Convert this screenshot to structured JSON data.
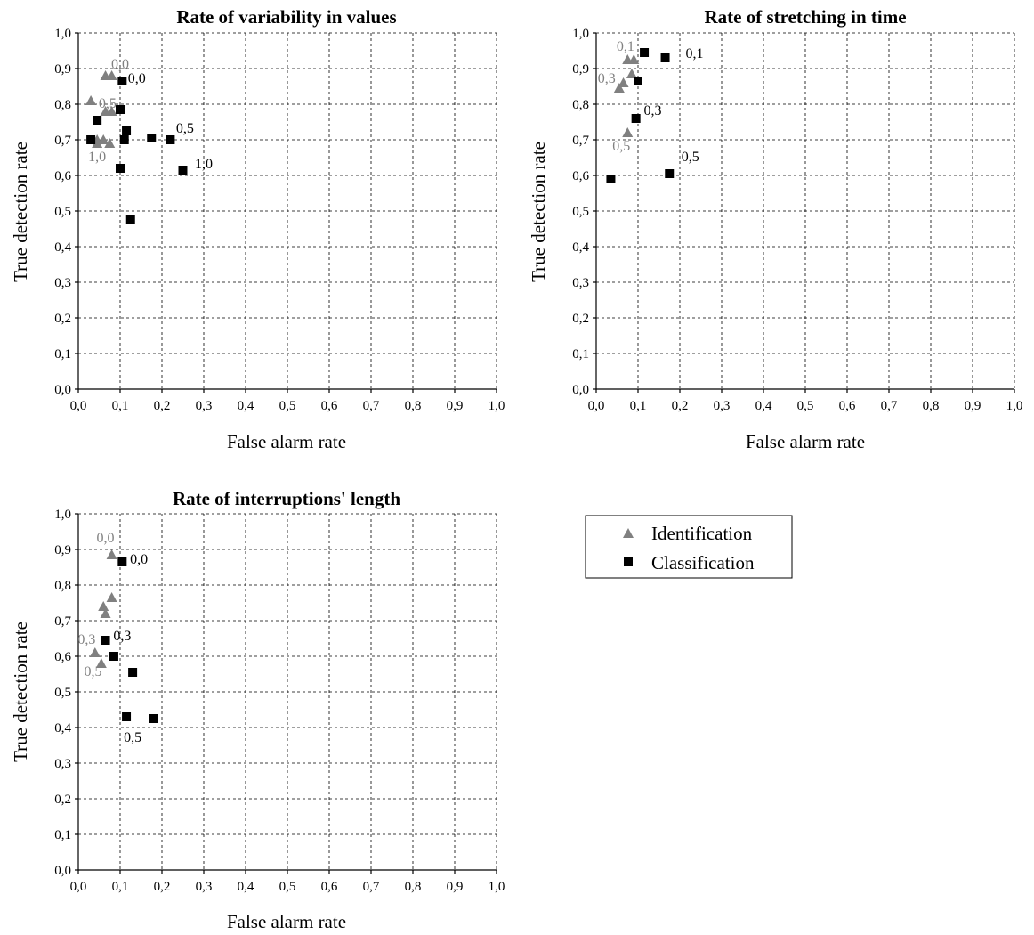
{
  "chart_data": [
    {
      "type": "scatter",
      "title": "Rate of variability in values",
      "xlabel": "False alarm rate",
      "ylabel": "True detection rate",
      "xlim": [
        0,
        1
      ],
      "ylim": [
        0,
        1
      ],
      "xticks": [
        "0,0",
        "0,1",
        "0,2",
        "0,3",
        "0,4",
        "0,5",
        "0,6",
        "0,7",
        "0,8",
        "0,9",
        "1,0"
      ],
      "yticks": [
        "0,0",
        "0,1",
        "0,2",
        "0,3",
        "0,4",
        "0,5",
        "0,6",
        "0,7",
        "0,8",
        "0,9",
        "1,0"
      ],
      "grid": true,
      "series": [
        {
          "name": "Identification",
          "points": [
            [
              0.065,
              0.88
            ],
            [
              0.08,
              0.88
            ],
            [
              0.03,
              0.81
            ],
            [
              0.065,
              0.78
            ],
            [
              0.08,
              0.78
            ],
            [
              0.045,
              0.7
            ],
            [
              0.045,
              0.69
            ],
            [
              0.06,
              0.7
            ],
            [
              0.075,
              0.69
            ]
          ]
        },
        {
          "name": "Classification",
          "points": [
            [
              0.105,
              0.865
            ],
            [
              0.1,
              0.785
            ],
            [
              0.045,
              0.755
            ],
            [
              0.03,
              0.7
            ],
            [
              0.11,
              0.7
            ],
            [
              0.115,
              0.725
            ],
            [
              0.175,
              0.705
            ],
            [
              0.22,
              0.7
            ],
            [
              0.1,
              0.62
            ],
            [
              0.25,
              0.615
            ],
            [
              0.125,
              0.475
            ]
          ]
        }
      ],
      "annotations": [
        {
          "text": "0,0",
          "series": "Identification",
          "x": 0.1,
          "y": 0.9
        },
        {
          "text": "0,5",
          "series": "Identification",
          "x": 0.07,
          "y": 0.79
        },
        {
          "text": "1,0",
          "series": "Identification",
          "x": 0.045,
          "y": 0.64
        },
        {
          "text": "0,0",
          "series": "Classification",
          "x": 0.14,
          "y": 0.86
        },
        {
          "text": "0,5",
          "series": "Classification",
          "x": 0.255,
          "y": 0.72
        },
        {
          "text": "1,0",
          "series": "Classification",
          "x": 0.3,
          "y": 0.62
        }
      ]
    },
    {
      "type": "scatter",
      "title": "Rate of stretching in time",
      "xlabel": "False alarm rate",
      "ylabel": "True detection rate",
      "xlim": [
        0,
        1
      ],
      "ylim": [
        0,
        1
      ],
      "xticks": [
        "0,0",
        "0,1",
        "0,2",
        "0,3",
        "0,4",
        "0,5",
        "0,6",
        "0,7",
        "0,8",
        "0,9",
        "1,0"
      ],
      "yticks": [
        "0,0",
        "0,1",
        "0,2",
        "0,3",
        "0,4",
        "0,5",
        "0,6",
        "0,7",
        "0,8",
        "0,9",
        "1,0"
      ],
      "grid": true,
      "series": [
        {
          "name": "Identification",
          "points": [
            [
              0.075,
              0.925
            ],
            [
              0.09,
              0.925
            ],
            [
              0.055,
              0.845
            ],
            [
              0.065,
              0.86
            ],
            [
              0.085,
              0.885
            ],
            [
              0.075,
              0.72
            ]
          ]
        },
        {
          "name": "Classification",
          "points": [
            [
              0.115,
              0.945
            ],
            [
              0.165,
              0.93
            ],
            [
              0.1,
              0.865
            ],
            [
              0.095,
              0.76
            ],
            [
              0.035,
              0.59
            ],
            [
              0.175,
              0.605
            ]
          ]
        }
      ],
      "annotations": [
        {
          "text": "0,1",
          "series": "Identification",
          "x": 0.07,
          "y": 0.95
        },
        {
          "text": "0,3",
          "series": "Identification",
          "x": 0.025,
          "y": 0.86
        },
        {
          "text": "0,5",
          "series": "Identification",
          "x": 0.06,
          "y": 0.67
        },
        {
          "text": "0,1",
          "series": "Classification",
          "x": 0.235,
          "y": 0.93
        },
        {
          "text": "0,3",
          "series": "Classification",
          "x": 0.135,
          "y": 0.77
        },
        {
          "text": "0,5",
          "series": "Classification",
          "x": 0.225,
          "y": 0.64
        }
      ]
    },
    {
      "type": "scatter",
      "title": "Rate of interruptions' length",
      "xlabel": "False alarm rate",
      "ylabel": "True detection rate",
      "xlim": [
        0,
        1
      ],
      "ylim": [
        0,
        1
      ],
      "xticks": [
        "0,0",
        "0,1",
        "0,2",
        "0,3",
        "0,4",
        "0,5",
        "0,6",
        "0,7",
        "0,8",
        "0,9",
        "1,0"
      ],
      "yticks": [
        "0,0",
        "0,1",
        "0,2",
        "0,3",
        "0,4",
        "0,5",
        "0,6",
        "0,7",
        "0,8",
        "0,9",
        "1,0"
      ],
      "grid": true,
      "series": [
        {
          "name": "Identification",
          "points": [
            [
              0.08,
              0.885
            ],
            [
              0.08,
              0.765
            ],
            [
              0.06,
              0.74
            ],
            [
              0.065,
              0.72
            ],
            [
              0.04,
              0.61
            ],
            [
              0.055,
              0.58
            ]
          ]
        },
        {
          "name": "Classification",
          "points": [
            [
              0.105,
              0.865
            ],
            [
              0.065,
              0.645
            ],
            [
              0.085,
              0.6
            ],
            [
              0.13,
              0.555
            ],
            [
              0.115,
              0.43
            ],
            [
              0.18,
              0.425
            ]
          ]
        }
      ],
      "annotations": [
        {
          "text": "0,0",
          "series": "Identification",
          "x": 0.065,
          "y": 0.92
        },
        {
          "text": "0,3",
          "series": "Identification",
          "x": 0.02,
          "y": 0.635
        },
        {
          "text": "0,5",
          "series": "Identification",
          "x": 0.035,
          "y": 0.545
        },
        {
          "text": "0,0",
          "series": "Classification",
          "x": 0.145,
          "y": 0.86
        },
        {
          "text": "0,3",
          "series": "Classification",
          "x": 0.105,
          "y": 0.645
        },
        {
          "text": "0,5",
          "series": "Classification",
          "x": 0.13,
          "y": 0.36
        }
      ]
    }
  ],
  "legend": {
    "placement": "right of bottom-left chart",
    "items": [
      {
        "label": "Identification",
        "marker": "triangle",
        "color": "#808080"
      },
      {
        "label": "Classification",
        "marker": "square",
        "color": "#000000"
      }
    ]
  },
  "colors": {
    "identification": "#808080",
    "classification": "#000000"
  }
}
